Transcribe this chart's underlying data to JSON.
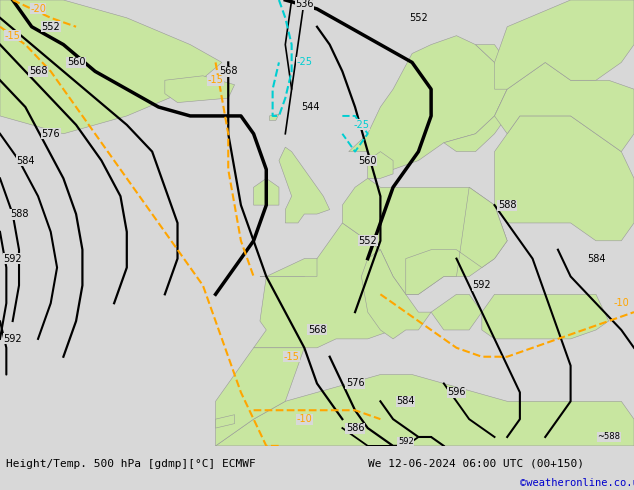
{
  "title_left": "Height/Temp. 500 hPa [gdmp][°C] ECMWF",
  "title_right": "We 12-06-2024 06:00 UTC (00+150)",
  "credit": "©weatheronline.co.uk",
  "land_color": "#c8e6a0",
  "sea_color": "#d8d8d8",
  "footer_bg": "#d8d8d8",
  "black": "#000000",
  "orange": "#FFA500",
  "cyan": "#00CED1",
  "figsize": [
    6.34,
    4.9
  ],
  "dpi": 100,
  "lon_min": -50,
  "lon_max": 50,
  "lat_min": 25,
  "lat_max": 75
}
